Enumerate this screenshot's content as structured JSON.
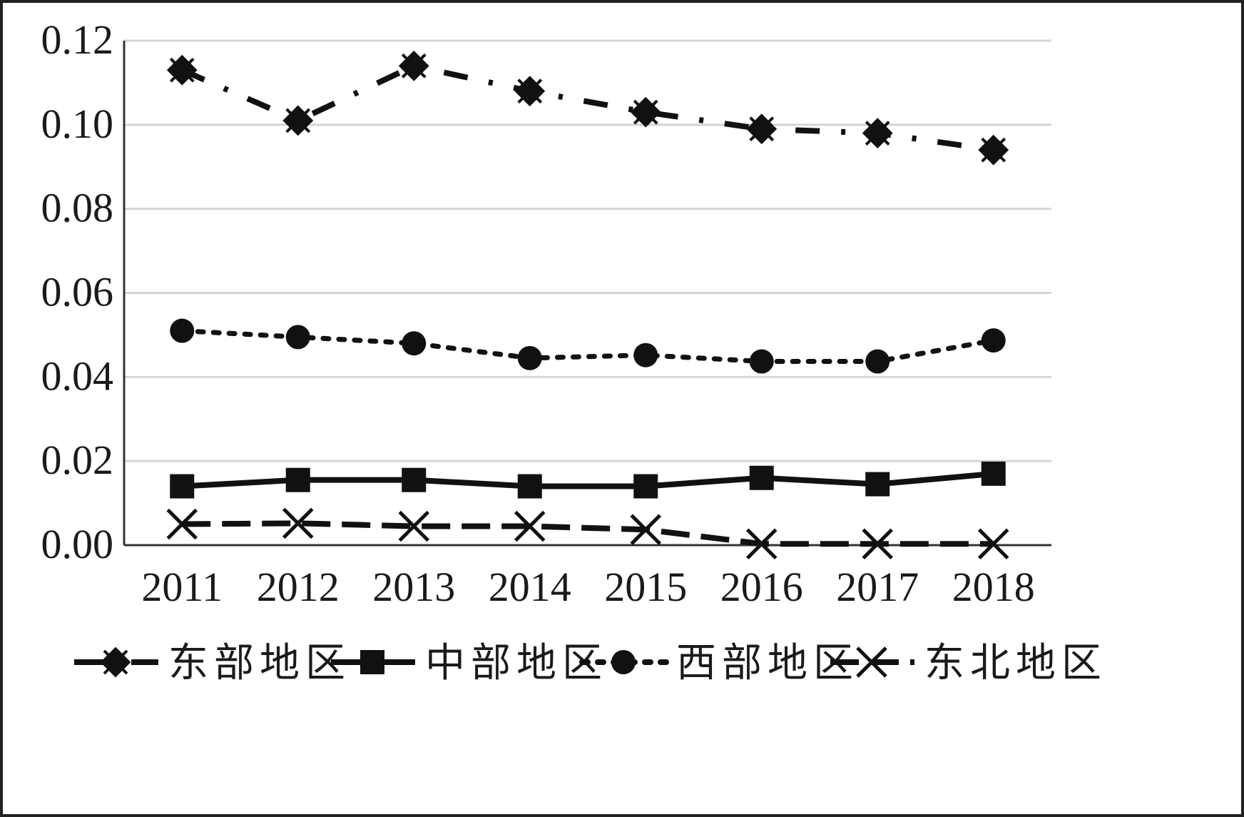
{
  "chart_data": {
    "type": "line",
    "title": "",
    "xlabel": "",
    "ylabel": "",
    "categories": [
      "2011",
      "2012",
      "2013",
      "2014",
      "2015",
      "2016",
      "2017",
      "2018"
    ],
    "ylim": [
      0,
      0.12
    ],
    "yticks": [
      "0.00",
      "0.02",
      "0.04",
      "0.06",
      "0.08",
      "0.10",
      "0.12"
    ],
    "grid": true,
    "legend_position": "bottom",
    "series": [
      {
        "name": "东部地区",
        "marker": "diamond",
        "line": "dash-dot",
        "color": "#111111",
        "values": [
          0.113,
          0.101,
          0.114,
          0.108,
          0.103,
          0.099,
          0.098,
          0.094
        ]
      },
      {
        "name": "中部地区",
        "marker": "square",
        "line": "solid",
        "color": "#111111",
        "values": [
          0.014,
          0.0155,
          0.0155,
          0.014,
          0.014,
          0.016,
          0.0145,
          0.017
        ]
      },
      {
        "name": "西部地区",
        "marker": "circle",
        "line": "dotted",
        "color": "#111111",
        "values": [
          0.051,
          0.0495,
          0.048,
          0.0445,
          0.0452,
          0.0437,
          0.0437,
          0.0487
        ]
      },
      {
        "name": "东北地区",
        "marker": "x",
        "line": "dashed",
        "color": "#111111",
        "values": [
          0.005,
          0.0052,
          0.0045,
          0.0045,
          0.0037,
          0.0003,
          0.0003,
          0.0003
        ]
      }
    ]
  }
}
